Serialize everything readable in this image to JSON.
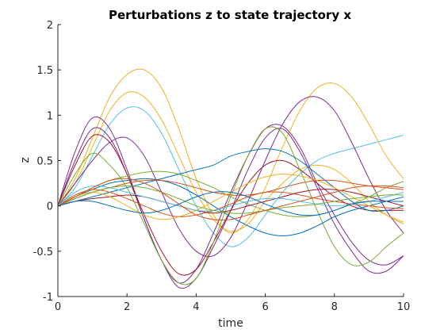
{
  "chart_data": {
    "type": "line",
    "title": "Perturbations z to state trajectory x",
    "xlabel": "time",
    "ylabel": "z",
    "xlim": [
      0,
      10
    ],
    "ylim": [
      -1,
      2
    ],
    "xticks": [
      0,
      2,
      4,
      6,
      8,
      10
    ],
    "yticks": [
      -1,
      -0.5,
      0,
      0.5,
      1,
      1.5,
      2
    ],
    "xtick_labels": [
      "0",
      "2",
      "4",
      "6",
      "8",
      "10"
    ],
    "ytick_labels": [
      "-1",
      "-0.5",
      "0",
      "0.5",
      "1",
      "1.5",
      "2"
    ],
    "grid": false,
    "legend": "none",
    "x": [
      0,
      0.5,
      1,
      1.5,
      2,
      2.5,
      3,
      3.5,
      4,
      4.5,
      5,
      5.5,
      6,
      6.5,
      7,
      7.5,
      8,
      8.5,
      9,
      9.5,
      10
    ],
    "series": [
      {
        "color": "#EDB120",
        "values": [
          0,
          0.3,
          0.75,
          1.2,
          1.45,
          1.5,
          1.3,
          0.85,
          0.3,
          -0.1,
          -0.3,
          -0.15,
          0.2,
          0.65,
          1.05,
          1.3,
          1.35,
          1.2,
          0.9,
          0.55,
          0.3
        ]
      },
      {
        "color": "#EDB120",
        "values": [
          0,
          0.25,
          0.65,
          1.05,
          1.25,
          1.2,
          0.95,
          0.55,
          0.15,
          -0.15,
          -0.28,
          -0.2,
          0.05,
          0.25,
          0.4,
          0.45,
          0.4,
          0.25,
          0.05,
          -0.1,
          -0.2
        ]
      },
      {
        "color": "#4DBEEE",
        "values": [
          0,
          0.2,
          0.55,
          0.9,
          1.08,
          1.05,
          0.8,
          0.4,
          0,
          -0.3,
          -0.45,
          -0.35,
          -0.1,
          0.15,
          0.35,
          0.5,
          0.58,
          0.63,
          0.68,
          0.73,
          0.78
        ]
      },
      {
        "color": "#7E2F8E",
        "values": [
          0,
          0.6,
          0.97,
          0.85,
          0.4,
          -0.15,
          -0.6,
          -0.9,
          -0.8,
          -0.45,
          -0.05,
          0.4,
          0.75,
          0.85,
          0.6,
          0.2,
          -0.2,
          -0.5,
          -0.72,
          -0.72,
          -0.55
        ]
      },
      {
        "color": "#7E2F8E",
        "values": [
          0,
          0.5,
          0.85,
          0.75,
          0.35,
          -0.15,
          -0.6,
          -0.85,
          -0.7,
          -0.3,
          0.15,
          0.55,
          0.85,
          0.88,
          0.65,
          0.25,
          -0.1,
          -0.4,
          -0.6,
          -0.65,
          -0.55
        ]
      },
      {
        "color": "#A2142F",
        "values": [
          0,
          0.45,
          0.77,
          0.7,
          0.35,
          -0.1,
          -0.5,
          -0.75,
          -0.7,
          -0.4,
          -0.05,
          0.25,
          0.45,
          0.5,
          0.4,
          0.25,
          0.1,
          0,
          -0.05,
          -0.05,
          -0.05
        ]
      },
      {
        "color": "#7E2F8E",
        "values": [
          0,
          0.25,
          0.5,
          0.7,
          0.75,
          0.55,
          0.15,
          -0.25,
          -0.5,
          -0.55,
          -0.35,
          0.05,
          0.5,
          0.9,
          1.15,
          1.2,
          1.05,
          0.7,
          0.3,
          -0.05,
          -0.3
        ]
      },
      {
        "color": "#77AC30",
        "values": [
          0,
          0.35,
          0.58,
          0.45,
          0.2,
          -0.2,
          -0.6,
          -0.85,
          -0.8,
          -0.4,
          0.1,
          0.55,
          0.85,
          0.8,
          0.4,
          -0.05,
          -0.45,
          -0.65,
          -0.62,
          -0.45,
          -0.3
        ]
      },
      {
        "color": "#77AC30",
        "values": [
          0,
          0.1,
          0.2,
          0.28,
          0.33,
          0.37,
          0.38,
          0.35,
          0.28,
          0.2,
          0.1,
          0.02,
          -0.05,
          -0.1,
          -0.12,
          -0.1,
          -0.05,
          0.02,
          0.1,
          0.2,
          0.27
        ]
      },
      {
        "color": "#0072BD",
        "values": [
          0,
          0.05,
          0.1,
          0.15,
          0.2,
          0.25,
          0.3,
          0.35,
          0.4,
          0.45,
          0.55,
          0.6,
          0.63,
          0.6,
          0.5,
          0.35,
          0.2,
          0.05,
          -0.05,
          -0.05,
          0
        ]
      },
      {
        "color": "#0072BD",
        "values": [
          0,
          0.1,
          0.18,
          0.25,
          0.28,
          0.3,
          0.28,
          0.22,
          0.12,
          0,
          -0.12,
          -0.22,
          -0.3,
          -0.33,
          -0.3,
          -0.22,
          -0.12,
          -0.05,
          0,
          0.05,
          0.1
        ]
      },
      {
        "color": "#D95319",
        "values": [
          0,
          0.12,
          0.18,
          0.15,
          0.08,
          0,
          -0.08,
          -0.12,
          -0.1,
          -0.05,
          0.02,
          0.1,
          0.15,
          0.15,
          0.12,
          0.08,
          0.05,
          0.02,
          0,
          -0.02,
          -0.03
        ]
      },
      {
        "color": "#D95319",
        "values": [
          0,
          0.08,
          0.15,
          0.2,
          0.25,
          0.28,
          0.28,
          0.25,
          0.2,
          0.15,
          0.12,
          0.12,
          0.15,
          0.2,
          0.25,
          0.28,
          0.28,
          0.25,
          0.22,
          0.2,
          0.18
        ]
      },
      {
        "color": "#A2142F",
        "values": [
          0,
          0.05,
          0.08,
          0.1,
          0.12,
          0.1,
          0.05,
          0,
          -0.05,
          -0.08,
          -0.05,
          0,
          0.05,
          0.1,
          0.15,
          0.18,
          0.18,
          0.15,
          0.1,
          0.05,
          0
        ]
      },
      {
        "color": "#EDB120",
        "values": [
          0,
          0.1,
          0.15,
          0.1,
          0,
          -0.1,
          -0.15,
          -0.12,
          -0.05,
          0.05,
          0.15,
          0.25,
          0.32,
          0.35,
          0.33,
          0.28,
          0.2,
          0.1,
          0,
          -0.1,
          -0.18
        ]
      },
      {
        "color": "#4DBEEE",
        "values": [
          0,
          0.15,
          0.22,
          0.2,
          0.15,
          0.1,
          0.05,
          0,
          -0.05,
          -0.05,
          0,
          0.05,
          0.08,
          0.08,
          0.05,
          0.02,
          0,
          0.02,
          0.05,
          0.1,
          0.15
        ]
      },
      {
        "color": "#77AC30",
        "values": [
          0,
          0.08,
          0.15,
          0.2,
          0.22,
          0.2,
          0.15,
          0.08,
          0,
          -0.05,
          -0.08,
          -0.08,
          -0.05,
          -0.02,
          0,
          0.02,
          0.05,
          0.08,
          0.1,
          0.12,
          0.12
        ]
      },
      {
        "color": "#D95319",
        "values": [
          0,
          0.1,
          0.2,
          0.28,
          0.3,
          0.25,
          0.15,
          0.02,
          -0.1,
          -0.15,
          -0.15,
          -0.1,
          -0.05,
          0,
          0.05,
          0.1,
          0.15,
          0.2,
          0.22,
          0.22,
          0.2
        ]
      },
      {
        "color": "#0072BD",
        "values": [
          0,
          0.05,
          0.05,
          0,
          -0.05,
          -0.08,
          -0.05,
          0.02,
          0.1,
          0.15,
          0.15,
          0.1,
          0.02,
          -0.05,
          -0.1,
          -0.1,
          -0.05,
          0.02,
          0.05,
          0.05,
          0.05
        ]
      }
    ]
  }
}
